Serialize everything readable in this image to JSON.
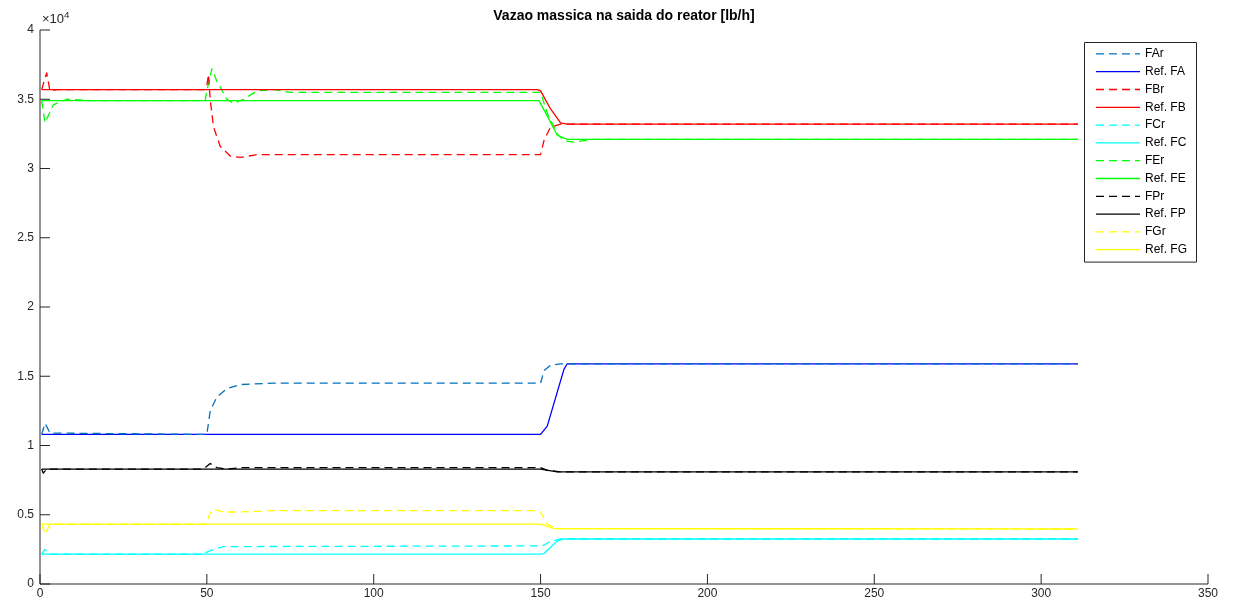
{
  "chart_data": {
    "type": "line",
    "title": "Vazao massica na saida do reator [lb/h]",
    "annotations": [
      "×10$^{4}$"
    ],
    "xlim": [
      0,
      350
    ],
    "xticks": [
      0,
      50,
      100,
      150,
      200,
      250,
      300,
      350
    ],
    "ylim": [
      0,
      4
    ],
    "yticks": [
      0,
      0.5,
      1,
      1.5,
      2,
      2.5,
      3,
      3.5,
      4
    ],
    "grid": false,
    "legend": "top right",
    "marker": "none",
    "series": [
      {
        "name": "FAr",
        "color": "#0072bd",
        "line_style": "dashed",
        "x": [
          0.5,
          1.5,
          3,
          49,
          50,
          51,
          53,
          56,
          60,
          70,
          150,
          151,
          153,
          156,
          311
        ],
        "values": [
          1.08,
          1.16,
          1.09,
          1.08,
          1.08,
          1.25,
          1.35,
          1.41,
          1.44,
          1.45,
          1.45,
          1.54,
          1.58,
          1.59,
          1.59
        ]
      },
      {
        "name": "Ref. FA",
        "color": "#0000ff",
        "line_style": "solid",
        "x": [
          0.5,
          150,
          152,
          157,
          158,
          311
        ],
        "values": [
          1.08,
          1.08,
          1.14,
          1.55,
          1.59,
          1.59
        ]
      },
      {
        "name": "FBr",
        "color": "#ff0000",
        "line_style": "dashed",
        "x": [
          0.5,
          2,
          3,
          5,
          49,
          50,
          50.5,
          51,
          52,
          54,
          57,
          60,
          65,
          70,
          150,
          151,
          153,
          156,
          311
        ],
        "values": [
          3.57,
          3.69,
          3.56,
          3.57,
          3.57,
          3.6,
          3.68,
          3.5,
          3.3,
          3.16,
          3.09,
          3.08,
          3.1,
          3.1,
          3.1,
          3.2,
          3.3,
          3.32,
          3.32
        ]
      },
      {
        "name": "Ref. FB",
        "color": "#ff0000",
        "line_style": "solid",
        "x": [
          0.5,
          149,
          150,
          153,
          156,
          158,
          311
        ],
        "values": [
          3.57,
          3.57,
          3.56,
          3.43,
          3.33,
          3.32,
          3.32
        ]
      },
      {
        "name": "FCr",
        "color": "#00ffff",
        "line_style": "dashed",
        "x": [
          0.5,
          1.5,
          3,
          49,
          50,
          52,
          55,
          150,
          151,
          153,
          156,
          311
        ],
        "values": [
          0.215,
          0.25,
          0.215,
          0.215,
          0.23,
          0.25,
          0.27,
          0.275,
          0.28,
          0.31,
          0.325,
          0.325
        ]
      },
      {
        "name": "Ref. FC",
        "color": "#00ffff",
        "line_style": "solid",
        "x": [
          0.5,
          150,
          151,
          155,
          157,
          311
        ],
        "values": [
          0.215,
          0.215,
          0.22,
          0.31,
          0.325,
          0.325
        ]
      },
      {
        "name": "FEr",
        "color": "#00ff00",
        "line_style": "dashed",
        "x": [
          0.5,
          1.5,
          4,
          8,
          15,
          49.5,
          50,
          51.5,
          53,
          56,
          58,
          61,
          65,
          70,
          75,
          150,
          152,
          155,
          157,
          160,
          165,
          311
        ],
        "values": [
          3.49,
          3.33,
          3.46,
          3.5,
          3.49,
          3.49,
          3.56,
          3.72,
          3.63,
          3.5,
          3.47,
          3.5,
          3.56,
          3.57,
          3.55,
          3.55,
          3.4,
          3.25,
          3.2,
          3.19,
          3.21,
          3.21
        ]
      },
      {
        "name": "Ref. FE",
        "color": "#00ff00",
        "line_style": "solid",
        "x": [
          0.5,
          149.5,
          152,
          155,
          158,
          311
        ],
        "values": [
          3.49,
          3.49,
          3.38,
          3.24,
          3.21,
          3.21
        ]
      },
      {
        "name": "FPr",
        "color": "#000000",
        "line_style": "dashed",
        "x": [
          0.5,
          1,
          2,
          49,
          50,
          51,
          53,
          56,
          60,
          150,
          152,
          156,
          311
        ],
        "values": [
          0.83,
          0.8,
          0.83,
          0.83,
          0.85,
          0.87,
          0.84,
          0.83,
          0.84,
          0.84,
          0.82,
          0.81,
          0.81
        ]
      },
      {
        "name": "Ref. FP",
        "color": "#000000",
        "line_style": "solid",
        "x": [
          0.5,
          150,
          155,
          311
        ],
        "values": [
          0.83,
          0.83,
          0.81,
          0.81
        ]
      },
      {
        "name": "FGr",
        "color": "#ffff00",
        "line_style": "dashed",
        "x": [
          0.5,
          1.5,
          3,
          49,
          50,
          51,
          52,
          55,
          60,
          70,
          148,
          150,
          152,
          155,
          311
        ],
        "values": [
          0.43,
          0.36,
          0.43,
          0.43,
          0.45,
          0.51,
          0.54,
          0.52,
          0.52,
          0.53,
          0.53,
          0.52,
          0.43,
          0.4,
          0.397
        ]
      },
      {
        "name": "Ref. FG",
        "color": "#ffff00",
        "line_style": "solid",
        "x": [
          0.5,
          150,
          154,
          311
        ],
        "values": [
          0.433,
          0.433,
          0.4,
          0.397
        ]
      }
    ]
  }
}
